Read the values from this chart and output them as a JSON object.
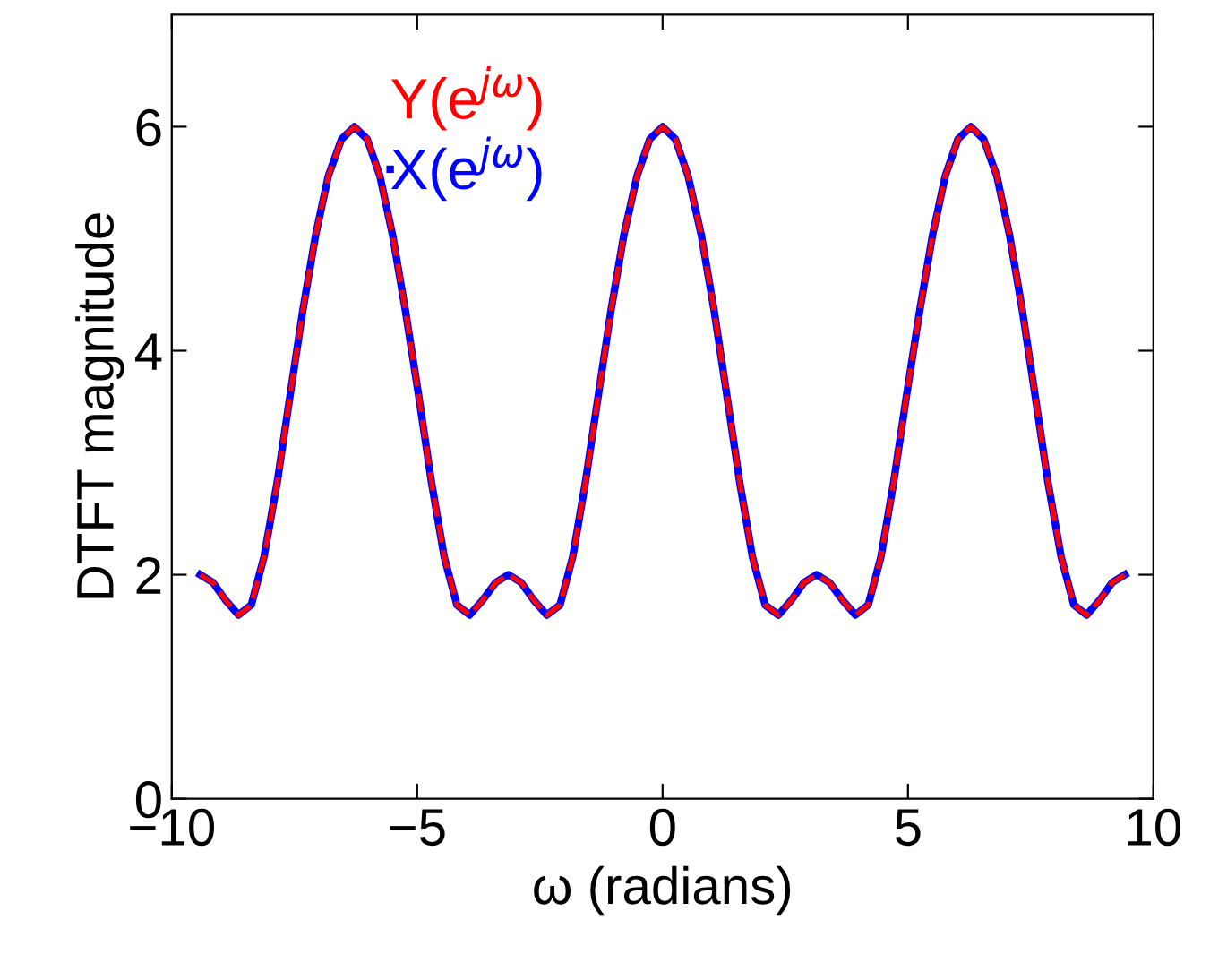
{
  "chart_data": {
    "type": "line",
    "xlabel": "ω (radians)",
    "ylabel": "DTFT magnitude",
    "x": [
      -9.42,
      -9.16,
      -8.9,
      -8.64,
      -8.38,
      -8.12,
      -7.85,
      -7.59,
      -7.33,
      -7.07,
      -6.81,
      -6.54,
      -6.28,
      -6.02,
      -5.76,
      -5.5,
      -5.24,
      -4.97,
      -4.71,
      -4.45,
      -4.19,
      -3.93,
      -3.67,
      -3.4,
      -3.14,
      -2.88,
      -2.62,
      -2.36,
      -2.09,
      -1.83,
      -1.57,
      -1.31,
      -1.05,
      -0.79,
      -0.52,
      -0.26,
      0,
      0.26,
      0.52,
      0.79,
      1.05,
      1.31,
      1.57,
      1.83,
      2.09,
      2.36,
      2.62,
      2.88,
      3.14,
      3.4,
      3.67,
      3.93,
      4.19,
      4.45,
      4.71,
      4.97,
      5.24,
      5.5,
      5.76,
      6.02,
      6.28,
      6.54,
      6.81,
      7.07,
      7.33,
      7.59,
      7.85,
      8.12,
      8.38,
      8.64,
      8.9,
      9.16,
      9.42
    ],
    "series": [
      {
        "name": "Y(e$^{jω}$)",
        "color": "#ff0000",
        "line_style": "dashed",
        "values": [
          2,
          1.93,
          1.77,
          1.64,
          1.73,
          2.16,
          2.83,
          3.6,
          4.36,
          5.03,
          5.56,
          5.89,
          6,
          5.89,
          5.56,
          5.03,
          4.36,
          3.6,
          2.83,
          2.16,
          1.73,
          1.64,
          1.77,
          1.93,
          2,
          1.93,
          1.77,
          1.64,
          1.73,
          2.16,
          2.83,
          3.6,
          4.36,
          5.03,
          5.56,
          5.89,
          6,
          5.89,
          5.56,
          5.03,
          4.36,
          3.6,
          2.83,
          2.16,
          1.73,
          1.64,
          1.77,
          1.93,
          2,
          1.93,
          1.77,
          1.64,
          1.73,
          2.16,
          2.83,
          3.6,
          4.36,
          5.03,
          5.56,
          5.89,
          6,
          5.89,
          5.56,
          5.03,
          4.36,
          3.6,
          2.83,
          2.16,
          1.73,
          1.64,
          1.77,
          1.93,
          2
        ]
      },
      {
        "name": "X(e$^{jω}$)",
        "color": "#0000ff",
        "line_style": "solid",
        "values": [
          2,
          1.93,
          1.77,
          1.64,
          1.73,
          2.16,
          2.83,
          3.6,
          4.36,
          5.03,
          5.56,
          5.89,
          6,
          5.89,
          5.56,
          5.03,
          4.36,
          3.6,
          2.83,
          2.16,
          1.73,
          1.64,
          1.77,
          1.93,
          2,
          1.93,
          1.77,
          1.64,
          1.73,
          2.16,
          2.83,
          3.6,
          4.36,
          5.03,
          5.56,
          5.89,
          6,
          5.89,
          5.56,
          5.03,
          4.36,
          3.6,
          2.83,
          2.16,
          1.73,
          1.64,
          1.77,
          1.93,
          2,
          1.93,
          1.77,
          1.64,
          1.73,
          2.16,
          2.83,
          3.6,
          4.36,
          5.03,
          5.56,
          5.89,
          6,
          5.89,
          5.56,
          5.03,
          4.36,
          3.6,
          2.83,
          2.16,
          1.73,
          1.64,
          1.77,
          1.93,
          2
        ]
      }
    ],
    "xlim": [
      -10,
      10
    ],
    "xticks": [
      {
        "value": -10,
        "label": "−10"
      },
      {
        "value": -5,
        "label": "−5"
      },
      0,
      5,
      10
    ],
    "ylim": [
      0,
      7
    ],
    "yticks": [
      0,
      2,
      4,
      6
    ],
    "grid": false,
    "legend": "top left",
    "marker": "none"
  }
}
